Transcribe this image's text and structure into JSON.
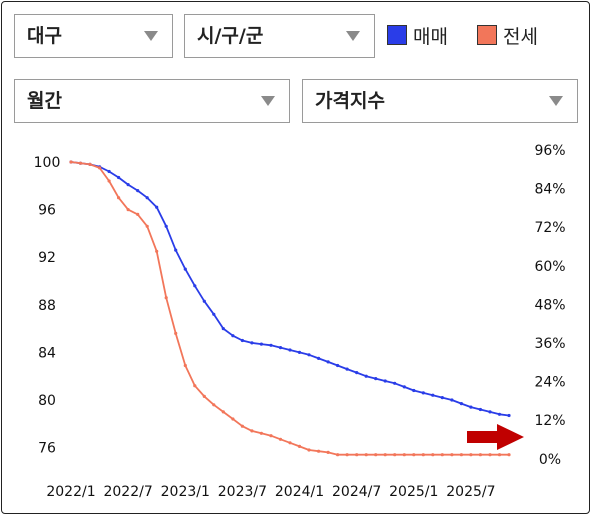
{
  "filters": {
    "region": "대구",
    "district": "시/구/군",
    "period": "월간",
    "index_type": "가격지수"
  },
  "legend": [
    {
      "label": "매매",
      "color": "#2a3de8"
    },
    {
      "label": "전세",
      "color": "#f2765a"
    }
  ],
  "icons": {
    "dropdown": "caret-down-icon",
    "indicator": "red-arrow-icon"
  },
  "chart_data": {
    "type": "line",
    "x_tick_labels": [
      "2022/1",
      "2022/7",
      "2023/1",
      "2023/7",
      "2024/1",
      "2024/7",
      "2025/1",
      "2025/7"
    ],
    "x_range": [
      "2022/1",
      "2025/11"
    ],
    "y_left": {
      "ticks": [
        "100",
        "96",
        "92",
        "88",
        "84",
        "80",
        "76"
      ],
      "range": [
        75.5,
        100.5
      ]
    },
    "y_right": {
      "ticks": [
        "96%",
        "84%",
        "72%",
        "60%",
        "48%",
        "36%",
        "24%",
        "12%",
        "0%"
      ]
    },
    "grid": false,
    "series": [
      {
        "name": "매매",
        "color": "#2a3de8",
        "x": [
          "2022/1",
          "2022/2",
          "2022/3",
          "2022/4",
          "2022/5",
          "2022/6",
          "2022/7",
          "2022/8",
          "2022/9",
          "2022/10",
          "2022/11",
          "2022/12",
          "2023/1",
          "2023/2",
          "2023/3",
          "2023/4",
          "2023/5",
          "2023/6",
          "2023/7",
          "2023/8",
          "2023/9",
          "2023/10",
          "2023/11",
          "2023/12",
          "2024/1",
          "2024/2",
          "2024/3",
          "2024/4",
          "2024/5",
          "2024/6",
          "2024/7",
          "2024/8",
          "2024/9",
          "2024/10",
          "2024/11",
          "2024/12",
          "2025/1",
          "2025/2",
          "2025/3",
          "2025/4",
          "2025/5",
          "2025/6",
          "2025/7",
          "2025/8",
          "2025/9",
          "2025/10",
          "2025/11"
        ],
        "values": [
          100.0,
          99.9,
          99.8,
          99.6,
          99.2,
          98.7,
          98.1,
          97.6,
          97.0,
          96.2,
          94.6,
          92.6,
          91.0,
          89.6,
          88.3,
          87.2,
          86.0,
          85.4,
          85.0,
          84.8,
          84.7,
          84.6,
          84.4,
          84.2,
          84.0,
          83.8,
          83.5,
          83.2,
          82.9,
          82.6,
          82.3,
          82.0,
          81.8,
          81.6,
          81.4,
          81.1,
          80.8,
          80.6,
          80.4,
          80.2,
          80.0,
          79.7,
          79.4,
          79.2,
          79.0,
          78.8,
          78.7
        ]
      },
      {
        "name": "전세",
        "color": "#f2765a",
        "x": [
          "2022/1",
          "2022/2",
          "2022/3",
          "2022/4",
          "2022/5",
          "2022/6",
          "2022/7",
          "2022/8",
          "2022/9",
          "2022/10",
          "2022/11",
          "2022/12",
          "2023/1",
          "2023/2",
          "2023/3",
          "2023/4",
          "2023/5",
          "2023/6",
          "2023/7",
          "2023/8",
          "2023/9",
          "2023/10",
          "2023/11",
          "2023/12",
          "2024/1",
          "2024/2",
          "2024/3",
          "2024/4",
          "2024/5",
          "2024/6",
          "2024/7",
          "2024/8",
          "2024/9",
          "2024/10",
          "2024/11",
          "2024/12",
          "2025/1",
          "2025/2",
          "2025/3",
          "2025/4",
          "2025/5",
          "2025/6",
          "2025/7",
          "2025/8",
          "2025/9",
          "2025/10",
          "2025/11"
        ],
        "values": [
          100.0,
          99.9,
          99.8,
          99.5,
          98.4,
          97.0,
          96.0,
          95.6,
          94.6,
          92.5,
          88.6,
          85.6,
          82.9,
          81.2,
          80.3,
          79.6,
          79.0,
          78.4,
          77.8,
          77.4,
          77.2,
          77.0,
          76.7,
          76.4,
          76.1,
          75.8,
          75.7,
          75.6,
          75.4,
          75.4,
          75.4,
          75.4,
          75.4,
          75.4,
          75.4,
          75.4,
          75.4,
          75.4,
          75.4,
          75.4,
          75.4,
          75.4,
          75.4,
          75.4,
          75.4,
          75.4,
          75.4
        ]
      }
    ]
  }
}
